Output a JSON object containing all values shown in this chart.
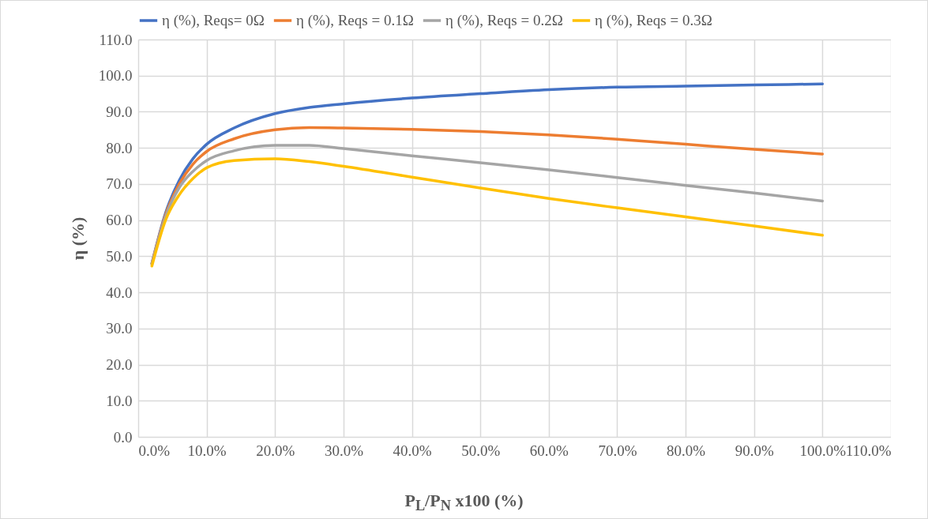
{
  "chart_data": {
    "type": "line",
    "xlabel": "P$_{L}$/P$_{N}$ x100 (%)",
    "ylabel": "η (%)",
    "x": [
      2,
      4,
      6,
      8,
      10,
      14,
      20,
      25,
      30,
      40,
      50,
      60,
      70,
      80,
      90,
      100
    ],
    "series": [
      {
        "name": "η (%), Reqs= 0Ω",
        "color": "#4472c4",
        "values": [
          48,
          62,
          71,
          77,
          81,
          85.5,
          89.5,
          91.2,
          92.2,
          93.8,
          95.0,
          96.1,
          96.8,
          97.1,
          97.4,
          97.7
        ]
      },
      {
        "name": "η (%), Reqs = 0.1Ω",
        "color": "#ed7d31",
        "values": [
          48,
          61.5,
          70,
          75.5,
          79,
          82.5,
          85,
          85.6,
          85.5,
          85.1,
          84.5,
          83.6,
          82.4,
          81.0,
          79.6,
          78.3
        ]
      },
      {
        "name": "η (%), Reqs = 0.2Ω",
        "color": "#a5a5a5",
        "values": [
          47.8,
          61,
          69,
          73.5,
          76.5,
          79.2,
          80.7,
          80.7,
          79.8,
          77.8,
          75.9,
          73.9,
          71.8,
          69.6,
          67.5,
          65.3
        ]
      },
      {
        "name": "η (%), Reqs = 0.3Ω",
        "color": "#ffc000",
        "values": [
          47.3,
          60,
          67,
          71.5,
          74.5,
          76.5,
          77,
          76.2,
          74.9,
          71.9,
          68.9,
          66.0,
          63.4,
          60.9,
          58.4,
          55.8
        ]
      }
    ],
    "xlim": [
      0,
      110
    ],
    "ylim": [
      0,
      110
    ],
    "xticks": [
      {
        "value": 0,
        "label": "0.0%"
      },
      {
        "value": 10,
        "label": "10.0%"
      },
      {
        "value": 20,
        "label": "20.0%"
      },
      {
        "value": 30,
        "label": "30.0%"
      },
      {
        "value": 40,
        "label": "40.0%"
      },
      {
        "value": 50,
        "label": "50.0%"
      },
      {
        "value": 60,
        "label": "60.0%"
      },
      {
        "value": 70,
        "label": "70.0%"
      },
      {
        "value": 80,
        "label": "80.0%"
      },
      {
        "value": 90,
        "label": "90.0%"
      },
      {
        "value": 100,
        "label": "100.0%"
      },
      {
        "value": 110,
        "label": "110.0%"
      }
    ],
    "yticks": [
      {
        "value": 0,
        "label": "0.0"
      },
      {
        "value": 10,
        "label": "10.0"
      },
      {
        "value": 20,
        "label": "20.0"
      },
      {
        "value": 30,
        "label": "30.0"
      },
      {
        "value": 40,
        "label": "40.0"
      },
      {
        "value": 50,
        "label": "50.0"
      },
      {
        "value": 60,
        "label": "60.0"
      },
      {
        "value": 70,
        "label": "70.0"
      },
      {
        "value": 80,
        "label": "80.0"
      },
      {
        "value": 90,
        "label": "90.0"
      },
      {
        "value": 100,
        "label": "100.0"
      },
      {
        "value": 110,
        "label": "110.0"
      }
    ],
    "grid": true,
    "legend": "top",
    "marker": "none",
    "line_style": "solid"
  }
}
